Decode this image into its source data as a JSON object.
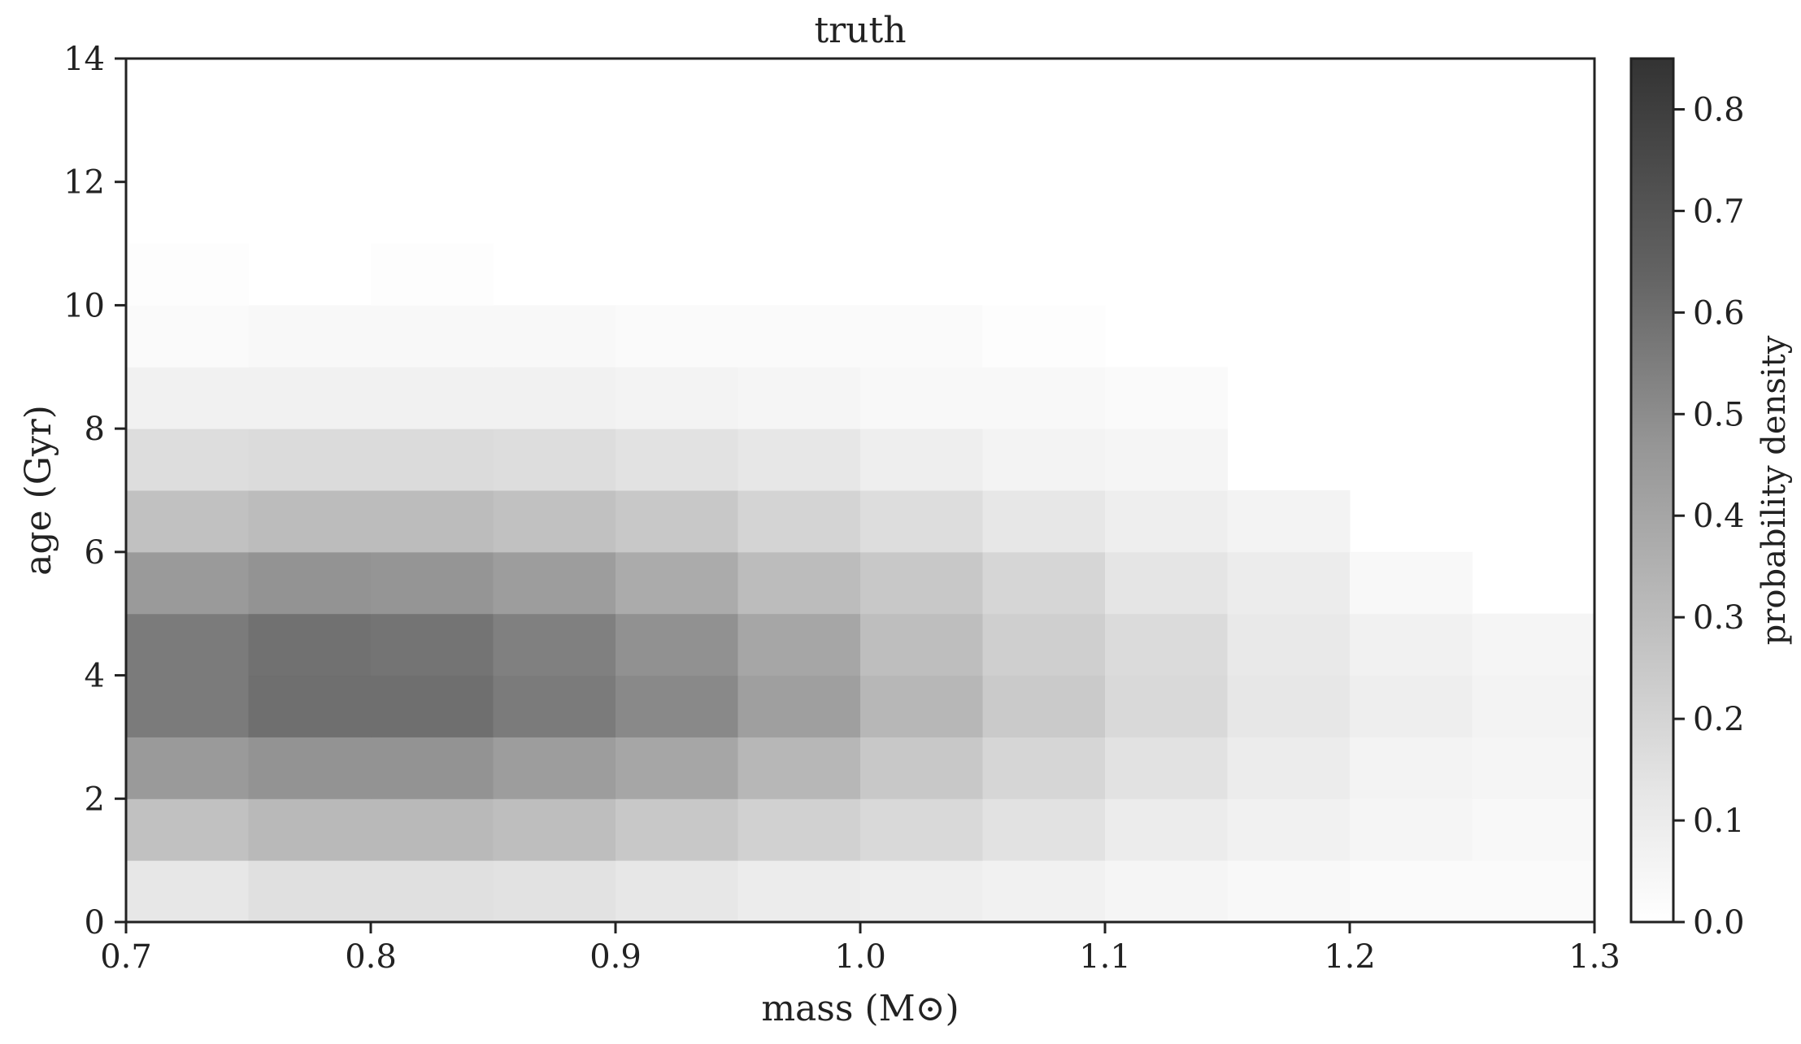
{
  "chart_data": {
    "type": "heatmap",
    "title": "truth",
    "xlabel": "mass (M⊙)",
    "ylabel": "age (Gyr)",
    "colorbar_label": "probability density",
    "colormap": "Greys",
    "xlim": [
      0.7,
      1.3
    ],
    "ylim": [
      0,
      14
    ],
    "vlim": [
      0,
      0.85
    ],
    "x_ticks": [
      "0.7",
      "0.8",
      "0.9",
      "1.0",
      "1.1",
      "1.2",
      "1.3"
    ],
    "y_ticks": [
      "0",
      "2",
      "4",
      "6",
      "8",
      "10",
      "12",
      "14"
    ],
    "colorbar_ticks": [
      "0.0",
      "0.1",
      "0.2",
      "0.3",
      "0.4",
      "0.5",
      "0.6",
      "0.7",
      "0.8"
    ],
    "x_bin_edges": [
      0.7,
      0.75,
      0.8,
      0.85,
      0.9,
      0.95,
      1.0,
      1.05,
      1.1,
      1.15,
      1.2,
      1.25,
      1.3
    ],
    "y_bin_edges": [
      0,
      1,
      2,
      3,
      4,
      5,
      6,
      7,
      8,
      9,
      10,
      11,
      12,
      13,
      14
    ],
    "values": [
      [
        0.1,
        0.13,
        0.13,
        0.12,
        0.1,
        0.08,
        0.07,
        0.06,
        0.04,
        0.03,
        0.02,
        0.02
      ],
      [
        0.26,
        0.29,
        0.29,
        0.27,
        0.23,
        0.19,
        0.16,
        0.12,
        0.08,
        0.06,
        0.04,
        0.03
      ],
      [
        0.42,
        0.45,
        0.45,
        0.41,
        0.37,
        0.3,
        0.23,
        0.17,
        0.12,
        0.08,
        0.05,
        0.04
      ],
      [
        0.55,
        0.6,
        0.6,
        0.55,
        0.49,
        0.4,
        0.3,
        0.22,
        0.16,
        0.1,
        0.07,
        0.05
      ],
      [
        0.55,
        0.59,
        0.58,
        0.53,
        0.46,
        0.37,
        0.27,
        0.2,
        0.15,
        0.09,
        0.06,
        0.04
      ],
      [
        0.42,
        0.45,
        0.44,
        0.41,
        0.35,
        0.28,
        0.23,
        0.17,
        0.11,
        0.08,
        0.03,
        null
      ],
      [
        0.26,
        0.28,
        0.28,
        0.26,
        0.23,
        0.18,
        0.14,
        0.1,
        0.07,
        0.05,
        null,
        null
      ],
      [
        0.14,
        0.15,
        0.15,
        0.14,
        0.12,
        0.1,
        0.07,
        0.05,
        0.04,
        null,
        null,
        null
      ],
      [
        0.06,
        0.06,
        0.06,
        0.06,
        0.05,
        0.04,
        0.03,
        0.03,
        0.02,
        null,
        null,
        null
      ],
      [
        0.02,
        0.03,
        0.03,
        0.03,
        0.02,
        0.02,
        0.02,
        0.01,
        null,
        null,
        null,
        null
      ],
      [
        0.01,
        null,
        0.01,
        null,
        null,
        null,
        null,
        null,
        null,
        null,
        null,
        null
      ],
      [
        null,
        null,
        null,
        null,
        null,
        null,
        null,
        null,
        null,
        null,
        null,
        null
      ],
      [
        null,
        null,
        null,
        null,
        null,
        null,
        null,
        null,
        null,
        null,
        null,
        null
      ],
      [
        null,
        null,
        null,
        null,
        null,
        null,
        null,
        null,
        null,
        null,
        null,
        null
      ]
    ]
  }
}
